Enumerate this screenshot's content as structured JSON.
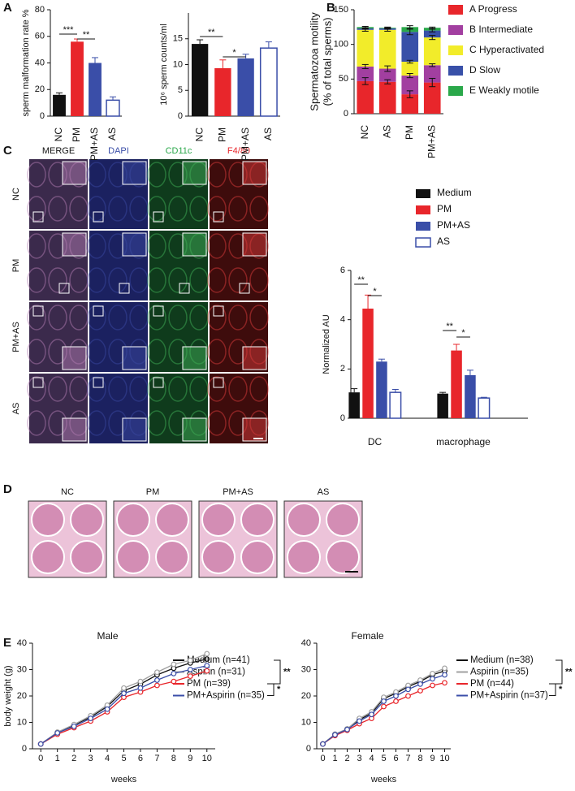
{
  "panel_labels": [
    "A",
    "B",
    "C",
    "D",
    "E"
  ],
  "panel_c_images": {
    "columns": [
      "MERGE",
      "DAPI",
      "CD11c",
      "F4/80"
    ],
    "rows": [
      "NC",
      "PM",
      "PM+AS",
      "AS"
    ]
  },
  "panel_d_images": {
    "labels": [
      "NC",
      "PM",
      "PM+AS",
      "AS"
    ]
  },
  "chart_data": [
    {
      "type": "bar",
      "ylabel": "sperm malformation rate %",
      "categories": [
        "NC",
        "PM",
        "PM+AS",
        "AS"
      ],
      "values": [
        16,
        56,
        40,
        12
      ],
      "errors": [
        1.5,
        2,
        4,
        2.5
      ],
      "colors": [
        "#111111",
        "#e8262b",
        "#3a4ea8",
        "#3a4ea8"
      ],
      "hollow": [
        false,
        false,
        false,
        true
      ],
      "ylim": [
        0,
        80
      ],
      "yticks": [
        0,
        20,
        40,
        60,
        80
      ],
      "annotations": [
        "***",
        "**"
      ]
    },
    {
      "type": "bar",
      "ylabel": "10⁶ sperm counts/ml",
      "categories": [
        "NC",
        "PM",
        "PM+AS",
        "AS"
      ],
      "values": [
        14,
        9.3,
        11.2,
        13.2
      ],
      "errors": [
        0.8,
        1.6,
        0.8,
        1.2
      ],
      "colors": [
        "#111111",
        "#e8262b",
        "#3a4ea8",
        "#3a4ea8"
      ],
      "hollow": [
        false,
        false,
        false,
        true
      ],
      "ylim": [
        0,
        20
      ],
      "yticks": [
        0,
        5,
        10,
        15
      ],
      "annotations": [
        "**",
        "*"
      ]
    },
    {
      "type": "stacked_bar",
      "ylabel": [
        "Spermatozoa motility",
        "(% of total sperms)"
      ],
      "categories": [
        "NC",
        "AS",
        "PM",
        "PM+AS"
      ],
      "series": [
        {
          "name": "A Progress",
          "color": "#e8262b",
          "values": [
            47,
            46,
            28,
            45
          ],
          "errors": [
            5,
            3,
            5,
            6
          ]
        },
        {
          "name": "B Intermediate",
          "color": "#a23fa0",
          "values": [
            21,
            19,
            27,
            25
          ],
          "errors": [
            3,
            4,
            3,
            2
          ]
        },
        {
          "name": "C Hyperactivated",
          "color": "#f2ec2a",
          "values": [
            53,
            56,
            20,
            40
          ],
          "errors": [
            2,
            2,
            2,
            3
          ]
        },
        {
          "name": "D Slow",
          "color": "#3850a8",
          "values": [
            2,
            2,
            43,
            10
          ],
          "errors": [
            1,
            1,
            4,
            2
          ]
        },
        {
          "name": "E Weakly motile",
          "color": "#2aa84a",
          "values": [
            2,
            1,
            7,
            4
          ],
          "errors": [
            1,
            1,
            2,
            1
          ]
        }
      ],
      "ylim": [
        0,
        150
      ],
      "yticks": [
        0,
        50,
        100,
        150
      ]
    },
    {
      "type": "grouped_bar",
      "ylabel": "Normalized AU",
      "categories": [
        "DC",
        "macrophage"
      ],
      "series": [
        {
          "name": "Medium",
          "color": "#111111",
          "hollow": false,
          "values": [
            1.05,
            1.0
          ],
          "errors": [
            0.15,
            0.05
          ]
        },
        {
          "name": "PM",
          "color": "#e8262b",
          "hollow": false,
          "values": [
            4.45,
            2.75
          ],
          "errors": [
            0.55,
            0.25
          ]
        },
        {
          "name": "PM+AS",
          "color": "#3a4ea8",
          "hollow": false,
          "values": [
            2.3,
            1.75
          ],
          "errors": [
            0.1,
            0.2
          ]
        },
        {
          "name": "AS",
          "color": "#3a4ea8",
          "hollow": true,
          "values": [
            1.05,
            0.82
          ],
          "errors": [
            0.12,
            0.03
          ]
        }
      ],
      "ylim": [
        0,
        6
      ],
      "yticks": [
        0,
        2,
        4,
        6
      ],
      "annotations": [
        "**",
        "*",
        "**",
        "*"
      ]
    },
    {
      "type": "line",
      "title": "Male",
      "xlabel": "weeks",
      "ylabel": "body weight (g)",
      "x": [
        0,
        1,
        2,
        3,
        4,
        5,
        6,
        7,
        8,
        9,
        10
      ],
      "series": [
        {
          "name": "Medium (n=41)",
          "color": "#111111",
          "values": [
            1.8,
            6.2,
            9,
            12,
            16,
            22,
            24.5,
            28,
            30.5,
            32.5,
            34
          ]
        },
        {
          "name": "Aspirin  (n=31)",
          "color": "#a0a0a0",
          "values": [
            1.8,
            6.3,
            9.2,
            12.5,
            16.5,
            23,
            25.5,
            29,
            32,
            33.5,
            36
          ]
        },
        {
          "name": "PM (n=39)",
          "color": "#e8262b",
          "values": [
            1.8,
            5.5,
            8,
            10.5,
            14,
            19.5,
            21.5,
            24,
            25.5,
            27.5,
            29.5
          ]
        },
        {
          "name": "PM+Aspirin (n=35)",
          "color": "#3a4ea8",
          "values": [
            1.8,
            6,
            8.5,
            11.5,
            15,
            21,
            23,
            26,
            28.5,
            30,
            31.5
          ]
        }
      ],
      "xlim": [
        -0.5,
        10.5
      ],
      "xticks": [
        0,
        1,
        2,
        3,
        4,
        5,
        6,
        7,
        8,
        9,
        10
      ],
      "ylim": [
        0,
        40
      ],
      "yticks": [
        0,
        10,
        20,
        30,
        40
      ],
      "annotations": [
        "**",
        "*"
      ]
    },
    {
      "type": "line",
      "title": "Female",
      "xlabel": "weeks",
      "ylabel": "",
      "x": [
        0,
        1,
        2,
        3,
        4,
        5,
        6,
        7,
        8,
        9,
        10
      ],
      "series": [
        {
          "name": "Medium (n=38)",
          "color": "#111111",
          "values": [
            1.8,
            5.5,
            7.5,
            11,
            13.5,
            19,
            21,
            23.5,
            25.5,
            28,
            29.5
          ]
        },
        {
          "name": "Aspirin  (n=35)",
          "color": "#a0a0a0",
          "values": [
            1.8,
            5.5,
            7.5,
            11.5,
            14,
            19.5,
            21.5,
            24,
            26,
            28.5,
            30.5
          ]
        },
        {
          "name": "PM (n=44)",
          "color": "#e8262b",
          "values": [
            1.8,
            5,
            7,
            9.5,
            11.5,
            16,
            18,
            20,
            22,
            24,
            25
          ]
        },
        {
          "name": "PM+Aspirin (n=37)",
          "color": "#3a4ea8",
          "values": [
            1.8,
            5.3,
            7.3,
            10.5,
            13,
            18,
            20,
            22.5,
            24.5,
            26.5,
            28
          ]
        }
      ],
      "xlim": [
        -0.5,
        10.5
      ],
      "xticks": [
        0,
        1,
        2,
        3,
        4,
        5,
        6,
        7,
        8,
        9,
        10
      ],
      "ylim": [
        0,
        40
      ],
      "yticks": [
        0,
        10,
        20,
        30,
        40
      ],
      "annotations": [
        "**",
        "*"
      ]
    }
  ]
}
